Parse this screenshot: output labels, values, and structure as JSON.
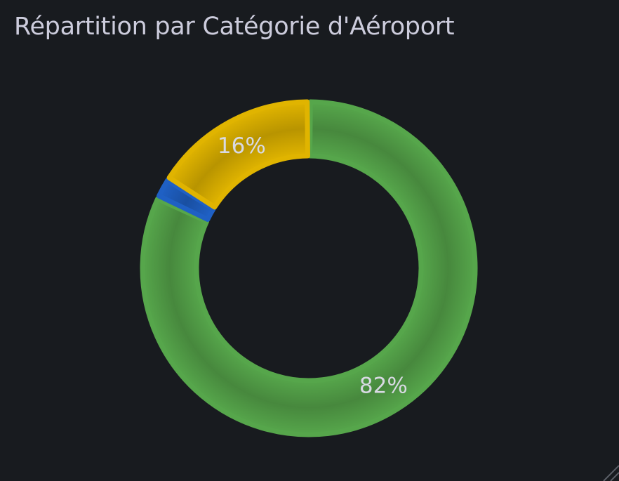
{
  "panel": {
    "title": "Répartition par Catégorie d'Aéroport"
  },
  "chart_data": {
    "type": "pie",
    "title": "Répartition par Catégorie d'Aéroport",
    "donut": true,
    "legend": "none",
    "slices": [
      {
        "value": 82,
        "label": "82%",
        "color": "#56a64b"
      },
      {
        "value": 2,
        "label": "",
        "color": "#1f60c4"
      },
      {
        "value": 16,
        "label": "16%",
        "color": "#e0b400"
      }
    ]
  }
}
